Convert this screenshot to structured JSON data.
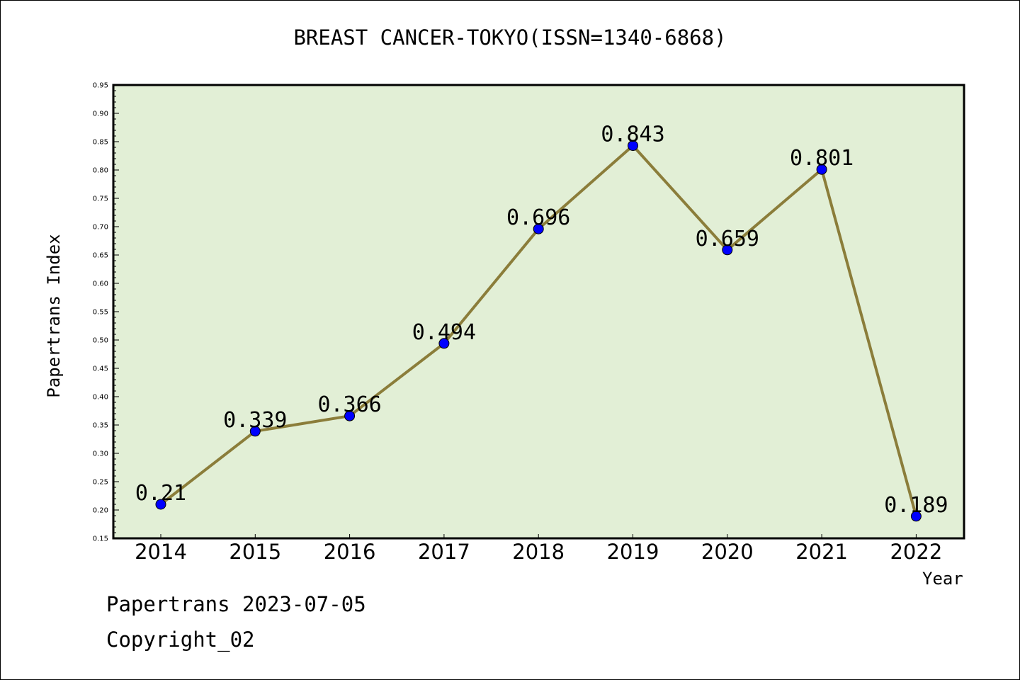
{
  "chart_data": {
    "type": "line",
    "title": "BREAST CANCER-TOKYO(ISSN=1340-6868)",
    "xlabel": "Year",
    "ylabel": "Papertrans Index",
    "categories": [
      "2014",
      "2015",
      "2016",
      "2017",
      "2018",
      "2019",
      "2020",
      "2021",
      "2022"
    ],
    "values": [
      0.21,
      0.339,
      0.366,
      0.494,
      0.696,
      0.843,
      0.659,
      0.801,
      0.189
    ],
    "data_labels": [
      "0.21",
      "0.339",
      "0.366",
      "0.494",
      "0.696",
      "0.843",
      "0.659",
      "0.801",
      "0.189"
    ],
    "ylim": [
      0.15,
      0.95
    ],
    "yticks": [
      "0.15",
      "0.20",
      "0.25",
      "0.30",
      "0.35",
      "0.40",
      "0.45",
      "0.50",
      "0.55",
      "0.60",
      "0.65",
      "0.70",
      "0.75",
      "0.80",
      "0.85",
      "0.90",
      "0.95"
    ],
    "grid": false,
    "colors": {
      "plot_background": "#e2efd6",
      "line": "#8b7d3a",
      "marker": "#0000ff"
    }
  },
  "footer": {
    "line1": "Papertrans 2023-07-05",
    "line2": "Copyright_02"
  }
}
